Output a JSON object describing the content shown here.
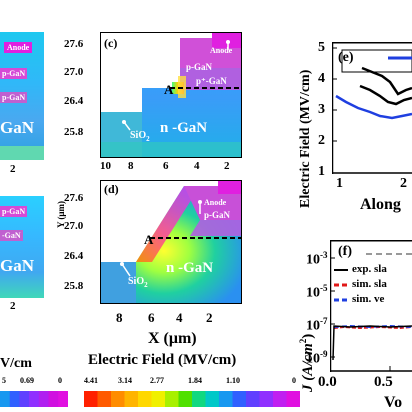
{
  "panel_c": {
    "label": "(c)",
    "yticks": [
      "27.6",
      "27.0",
      "26.4",
      "25.8"
    ],
    "xticks": [
      "10",
      "8",
      "6",
      "4",
      "2"
    ],
    "anode": "Anode",
    "pgan": "p-GaN",
    "ppgan": "p⁺-GaN",
    "ngan": "n -GaN",
    "sio2": "SiO",
    "sio2_sub": "2",
    "marker": "A"
  },
  "panel_d": {
    "label": "(d)",
    "yticks": [
      "27.6",
      "27.0",
      "26.4",
      "25.8"
    ],
    "xticks": [
      "8",
      "6",
      "4",
      "2"
    ],
    "ylabel": "Y (μm)",
    "anode": "Anode",
    "pgan": "p-GaN",
    "ngan": "n -GaN",
    "sio2": "SiO",
    "sio2_sub": "2",
    "marker": "A",
    "xlabel": "X (μm)"
  },
  "left_panels": {
    "top": {
      "anode": "Anode",
      "pgan": "p-GaN",
      "ppgan": "p-GaN",
      "ngan": "GaN",
      "xtick": "2"
    },
    "bottom": {
      "pgan": "p-GaN",
      "ppgan": "-GaN",
      "ngan": "GaN",
      "xtick": "2"
    },
    "units": "V/cm"
  },
  "colorbar_left": {
    "ticks": [
      "5",
      "0.69",
      "0"
    ]
  },
  "colorbar_mid": {
    "title": "Electric Field (MV/cm)",
    "ticks": [
      "4.41",
      "3.14",
      "2.77",
      "1.84",
      "1.10",
      "0"
    ]
  },
  "panel_e": {
    "label": "(e)",
    "ylabel": "Electric Field (MV/cm)",
    "yticks": [
      "5",
      "4",
      "3",
      "2",
      "1"
    ],
    "xticks": [
      "1",
      "2"
    ],
    "xlabel": "Along",
    "colors": {
      "black": "#000000",
      "blue": "#1f3fe0"
    }
  },
  "panel_f": {
    "label": "(f)",
    "ylabel": "J (A/cm",
    "ylabel_sup": "2",
    "ylabel_end": ")",
    "yticks": [
      "10",
      "10",
      "10",
      "10"
    ],
    "yexps": [
      "-3",
      "-5",
      "-7",
      "-9"
    ],
    "xticks": [
      "0.0",
      "0.5"
    ],
    "xlabel": "Vo",
    "legend": [
      "exp. sla",
      "sim. sla",
      "sim. ve"
    ],
    "colors": {
      "exp": "#000000",
      "sim1": "#e01818",
      "sim2": "#1f3fe0",
      "dash": "#999999"
    }
  }
}
